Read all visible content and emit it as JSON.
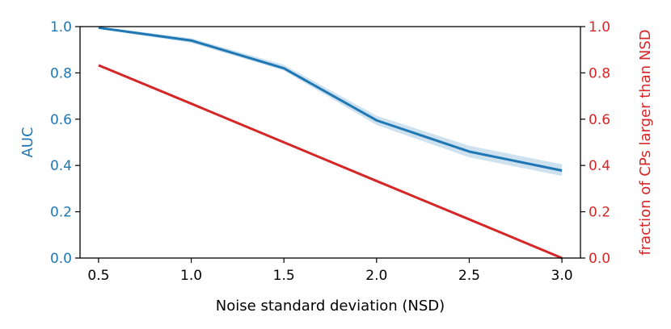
{
  "chart_data": {
    "type": "line",
    "title": "",
    "xlabel": "Noise standard deviation (NSD)",
    "ylabel_left": "AUC",
    "ylabel_right": "fraction of CPs larger than NSD",
    "xlim": [
      0.4,
      3.1
    ],
    "ylim_left": [
      0.0,
      1.0
    ],
    "ylim_right": [
      0.0,
      1.0
    ],
    "x_ticks": [
      "0.5",
      "1.0",
      "1.5",
      "2.0",
      "2.5",
      "3.0"
    ],
    "y_ticks_left": [
      "0.0",
      "0.2",
      "0.4",
      "0.6",
      "0.8",
      "1.0"
    ],
    "y_ticks_right": [
      "0.0",
      "0.2",
      "0.4",
      "0.6",
      "0.8",
      "1.0"
    ],
    "x": [
      0.5,
      1.0,
      1.5,
      2.0,
      2.5,
      3.0
    ],
    "series": [
      {
        "name": "AUC",
        "axis": "left",
        "color": "#1f77b4",
        "values": [
          0.995,
          0.94,
          0.82,
          0.595,
          0.46,
          0.378
        ],
        "band_lower": [
          0.99,
          0.93,
          0.81,
          0.575,
          0.435,
          0.355
        ],
        "band_upper": [
          1.0,
          0.95,
          0.835,
          0.615,
          0.485,
          0.405
        ]
      },
      {
        "name": "fraction of CPs larger than NSD",
        "axis": "right",
        "color": "#d62728",
        "values": [
          0.833,
          0.667,
          0.5,
          0.333,
          0.167,
          0.0
        ]
      }
    ],
    "grid": false,
    "left_axis_color": "#1f77b4",
    "right_axis_color": "#d62728"
  }
}
